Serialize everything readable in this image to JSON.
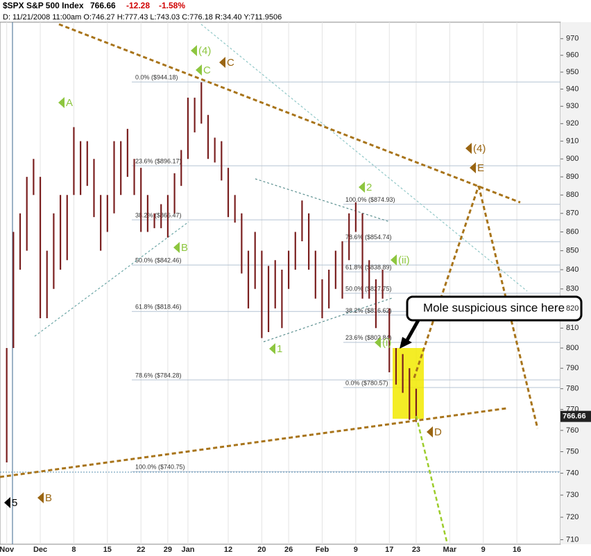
{
  "chart_data": {
    "type": "hlbar",
    "title": "$SPX S&P 500 Index",
    "last_price": 766.66,
    "change": -12.28,
    "change_pct": "-1.58%",
    "info": "D: 11/21/2008 11:00am O:746.27 H:777.43 L:743.03 C:776.18 R:34.40 Y:711.9506",
    "log_scale": true,
    "color": "#7a1f1f",
    "ylim": [
      708,
      980
    ],
    "yticks": [
      710,
      720,
      730,
      740,
      750,
      760,
      770,
      780,
      790,
      800,
      810,
      820,
      830,
      840,
      850,
      860,
      870,
      880,
      890,
      900,
      910,
      920,
      930,
      940,
      950,
      960,
      970
    ],
    "xlim": [
      -1,
      82.5
    ],
    "xticks": [
      {
        "value": 0,
        "label": "Nov"
      },
      {
        "value": 5,
        "label": "Dec"
      },
      {
        "value": 10,
        "label": "8"
      },
      {
        "value": 15,
        "label": "15"
      },
      {
        "value": 20,
        "label": "22"
      },
      {
        "value": 24,
        "label": "29"
      },
      {
        "value": 27,
        "label": "Jan"
      },
      {
        "value": 33,
        "label": "12"
      },
      {
        "value": 38,
        "label": "20"
      },
      {
        "value": 42,
        "label": "26"
      },
      {
        "value": 47,
        "label": "Feb"
      },
      {
        "value": 52,
        "label": "9"
      },
      {
        "value": 57,
        "label": "17"
      },
      {
        "value": 61,
        "label": "23"
      },
      {
        "value": 66,
        "label": "Mar"
      },
      {
        "value": 71,
        "label": "9"
      },
      {
        "value": 76,
        "label": "16"
      }
    ],
    "x": [
      0,
      1,
      2,
      3,
      4,
      5,
      6,
      7,
      8,
      9,
      10,
      11,
      12,
      13,
      14,
      15,
      16,
      17,
      18,
      19,
      20,
      21,
      22,
      23,
      24,
      25,
      26,
      27,
      28,
      29,
      30,
      31,
      32,
      33,
      34,
      35,
      36,
      37,
      38,
      39,
      40,
      41,
      42,
      43,
      44,
      45,
      46,
      47,
      48,
      49,
      50,
      51,
      52,
      53,
      54,
      55,
      56,
      57,
      58,
      59,
      60,
      61
    ],
    "high": [
      800,
      860,
      870,
      890,
      900,
      890,
      850,
      870,
      880,
      880,
      918,
      910,
      910,
      900,
      880,
      880,
      910,
      910,
      917,
      900,
      895,
      880,
      870,
      875,
      880,
      892,
      905,
      935,
      935,
      944,
      925,
      912,
      910,
      895,
      880,
      870,
      850,
      860,
      850,
      842,
      845,
      840,
      850,
      860,
      877,
      870,
      850,
      835,
      840,
      850,
      855,
      870,
      876,
      870,
      845,
      835,
      840,
      820,
      800,
      797,
      790,
      780
    ],
    "low": [
      745,
      800,
      840,
      850,
      880,
      815,
      815,
      830,
      840,
      845,
      880,
      880,
      885,
      868,
      850,
      860,
      870,
      880,
      890,
      880,
      860,
      860,
      862,
      862,
      857,
      870,
      885,
      900,
      915,
      920,
      900,
      898,
      888,
      868,
      865,
      838,
      820,
      830,
      805,
      808,
      820,
      810,
      830,
      840,
      855,
      840,
      825,
      815,
      820,
      830,
      825,
      845,
      860,
      825,
      825,
      810,
      825,
      788,
      782,
      778,
      765,
      764
    ],
    "fib_levels": [
      {
        "label": "0.0% ($944.18)",
        "value": 944.18
      },
      {
        "label": "23.6% ($896.17)",
        "value": 896.17
      },
      {
        "label": "38.2% ($866.47)",
        "value": 866.47
      },
      {
        "label": "50.0% ($842.46)",
        "value": 842.46
      },
      {
        "label": "61.8% ($818.46)",
        "value": 818.46
      },
      {
        "label": "78.6% ($784.28)",
        "value": 784.28
      },
      {
        "label": "100.0% ($740.75)",
        "value": 740.75
      }
    ],
    "fib_levels_2": [
      {
        "label": "100.0% ($874.93)",
        "value": 874.93
      },
      {
        "label": "78.6% ($854.74)",
        "value": 854.74
      },
      {
        "label": "61.8% ($838.89)",
        "value": 838.89
      },
      {
        "label": "50.0% ($827.75)",
        "value": 827.75
      },
      {
        "label": "38.2% ($816.62)",
        "value": 816.62
      },
      {
        "label": "23.6% ($802.84)",
        "value": 802.84
      },
      {
        "label": "0.0% ($780.57)",
        "value": 780.57
      }
    ],
    "wave_labels": [
      {
        "text": "(4)",
        "color": "#8dc63f"
      },
      {
        "text": "C",
        "color": "#8dc63f"
      },
      {
        "text": "C",
        "color": "#9a6512"
      },
      {
        "text": "A",
        "color": "#8dc63f"
      },
      {
        "text": "B",
        "color": "#8dc63f"
      },
      {
        "text": "1",
        "color": "#8dc63f"
      },
      {
        "text": "2",
        "color": "#8dc63f"
      },
      {
        "text": "(ii)",
        "color": "#8dc63f"
      },
      {
        "text": "(i)",
        "color": "#8dc63f"
      },
      {
        "text": "(4)",
        "color": "#9a6512"
      },
      {
        "text": "E",
        "color": "#9a6512"
      },
      {
        "text": "D",
        "color": "#9a6512"
      },
      {
        "text": "5",
        "color": "#000000"
      },
      {
        "text": "B",
        "color": "#9a6512"
      }
    ],
    "annotation": "Mole suspicious since here"
  }
}
